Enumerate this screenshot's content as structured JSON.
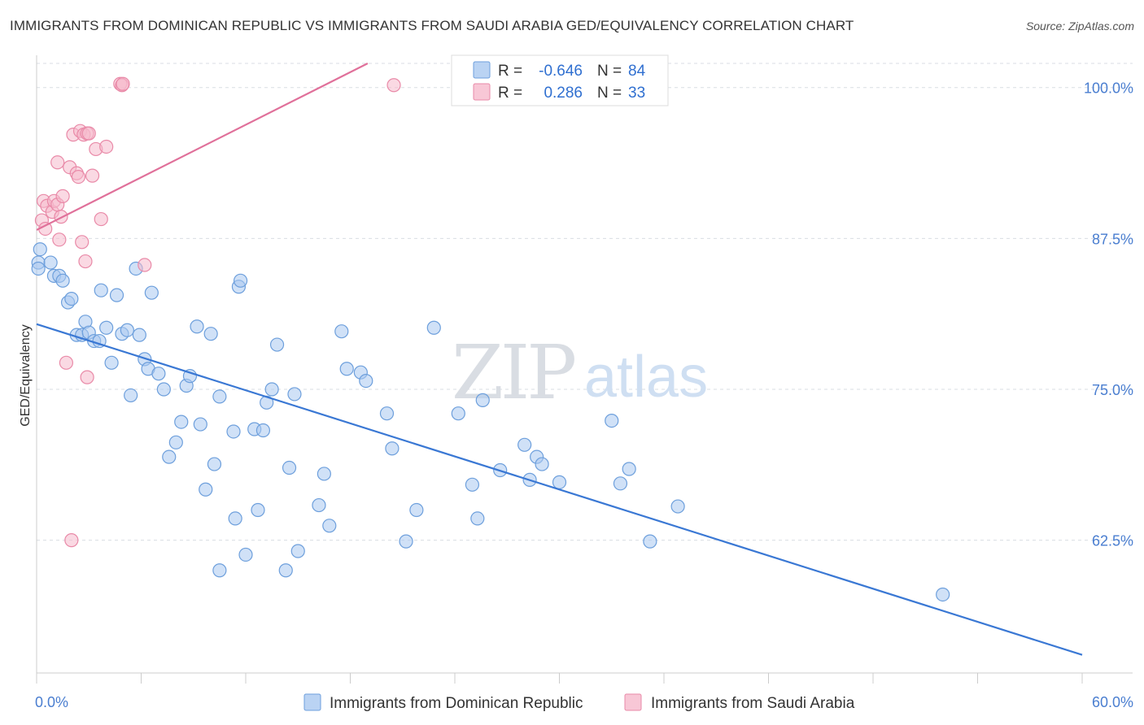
{
  "title": "IMMIGRANTS FROM DOMINICAN REPUBLIC VS IMMIGRANTS FROM SAUDI ARABIA GED/EQUIVALENCY CORRELATION CHART",
  "source": "Source: ZipAtlas.com",
  "watermark": {
    "part1": "ZIP",
    "part2": "atlas"
  },
  "colors": {
    "blue_fill": "#a9c8f0",
    "blue_stroke": "#6d9fdc",
    "blue_line": "#3a78d4",
    "pink_fill": "#f6b9cc",
    "pink_stroke": "#e98aa8",
    "pink_line": "#e0709a",
    "grid": "#d9dde3",
    "tick_text": "#4a7ed0"
  },
  "legend": {
    "rows": [
      {
        "r_label": "R =",
        "r_value": "-0.646",
        "n_label": "N =",
        "n_value": "84"
      },
      {
        "r_label": "R =",
        "r_value": "0.286",
        "n_label": "N =",
        "n_value": "33"
      }
    ]
  },
  "chart_data": {
    "type": "scatter",
    "ylabel": "GED/Equivalency",
    "xlim": [
      0,
      60
    ],
    "ylim": [
      51.5,
      102
    ],
    "x_tick_labels": [
      "0.0%",
      "60.0%"
    ],
    "y_ticks": [
      100,
      87.5,
      75,
      62.5
    ],
    "y_tick_labels": [
      "100.0%",
      "87.5%",
      "75.0%",
      "62.5%"
    ],
    "grid": "horizontal dashed",
    "legend_position": "top-center",
    "series": [
      {
        "name": "Immigrants from Dominican Republic",
        "color": "blue",
        "trend": {
          "x": [
            0,
            60
          ],
          "y": [
            80.4,
            53.0
          ]
        },
        "points": [
          [
            0.1,
            85.5
          ],
          [
            0.2,
            86.6
          ],
          [
            0.8,
            85.5
          ],
          [
            1.0,
            84.4
          ],
          [
            1.3,
            84.4
          ],
          [
            1.5,
            84.0
          ],
          [
            1.8,
            82.2
          ],
          [
            2.0,
            82.5
          ],
          [
            2.3,
            79.5
          ],
          [
            2.6,
            79.5
          ],
          [
            2.8,
            80.6
          ],
          [
            3.0,
            79.7
          ],
          [
            3.3,
            79.0
          ],
          [
            3.6,
            79.0
          ],
          [
            3.7,
            83.2
          ],
          [
            4.0,
            80.1
          ],
          [
            4.3,
            77.2
          ],
          [
            4.6,
            82.8
          ],
          [
            4.9,
            79.6
          ],
          [
            5.2,
            79.9
          ],
          [
            5.4,
            74.5
          ],
          [
            5.7,
            85.0
          ],
          [
            5.9,
            79.5
          ],
          [
            6.2,
            77.5
          ],
          [
            6.4,
            76.7
          ],
          [
            6.6,
            83.0
          ],
          [
            7.0,
            76.3
          ],
          [
            7.3,
            75.0
          ],
          [
            7.6,
            69.4
          ],
          [
            8.0,
            70.6
          ],
          [
            8.3,
            72.3
          ],
          [
            8.6,
            75.3
          ],
          [
            8.8,
            76.1
          ],
          [
            9.2,
            80.2
          ],
          [
            9.4,
            72.1
          ],
          [
            9.7,
            66.7
          ],
          [
            10.0,
            79.6
          ],
          [
            10.2,
            68.8
          ],
          [
            10.5,
            74.4
          ],
          [
            10.5,
            60.0
          ],
          [
            11.3,
            71.5
          ],
          [
            11.4,
            64.3
          ],
          [
            11.6,
            83.5
          ],
          [
            11.7,
            84.0
          ],
          [
            12.0,
            61.3
          ],
          [
            12.5,
            71.7
          ],
          [
            12.7,
            65.0
          ],
          [
            13.0,
            71.6
          ],
          [
            13.2,
            73.9
          ],
          [
            13.5,
            75.0
          ],
          [
            13.8,
            78.7
          ],
          [
            14.3,
            60.0
          ],
          [
            14.5,
            68.5
          ],
          [
            14.8,
            74.6
          ],
          [
            15.0,
            61.6
          ],
          [
            16.2,
            65.4
          ],
          [
            16.5,
            68.0
          ],
          [
            16.8,
            63.7
          ],
          [
            17.5,
            79.8
          ],
          [
            17.8,
            76.7
          ],
          [
            18.6,
            76.4
          ],
          [
            18.9,
            75.7
          ],
          [
            20.1,
            73.0
          ],
          [
            20.4,
            70.1
          ],
          [
            21.2,
            62.4
          ],
          [
            21.8,
            65.0
          ],
          [
            22.8,
            80.1
          ],
          [
            24.2,
            73.0
          ],
          [
            25.0,
            67.1
          ],
          [
            25.3,
            64.3
          ],
          [
            25.6,
            74.1
          ],
          [
            26.6,
            68.3
          ],
          [
            28.0,
            70.4
          ],
          [
            28.3,
            67.5
          ],
          [
            28.7,
            69.4
          ],
          [
            29.0,
            68.8
          ],
          [
            30.0,
            67.3
          ],
          [
            33.0,
            72.4
          ],
          [
            33.5,
            67.2
          ],
          [
            34.0,
            68.4
          ],
          [
            35.2,
            62.4
          ],
          [
            36.8,
            65.3
          ],
          [
            52.0,
            58.0
          ],
          [
            0.1,
            85.0
          ]
        ]
      },
      {
        "name": "Immigrants from Saudi Arabia",
        "color": "pink",
        "trend": {
          "x": [
            0,
            19
          ],
          "y": [
            88.2,
            102
          ]
        },
        "points": [
          [
            0.3,
            89.0
          ],
          [
            0.4,
            90.6
          ],
          [
            0.5,
            88.3
          ],
          [
            0.6,
            90.2
          ],
          [
            0.9,
            89.7
          ],
          [
            1.0,
            90.6
          ],
          [
            1.2,
            90.3
          ],
          [
            1.2,
            93.8
          ],
          [
            1.3,
            87.4
          ],
          [
            1.4,
            89.3
          ],
          [
            1.5,
            91.0
          ],
          [
            1.7,
            77.2
          ],
          [
            1.9,
            93.4
          ],
          [
            2.0,
            62.5
          ],
          [
            2.1,
            96.1
          ],
          [
            2.3,
            92.9
          ],
          [
            2.4,
            92.6
          ],
          [
            2.5,
            96.4
          ],
          [
            2.6,
            87.2
          ],
          [
            2.7,
            96.1
          ],
          [
            2.8,
            85.6
          ],
          [
            2.9,
            96.2
          ],
          [
            2.9,
            76.0
          ],
          [
            3.0,
            96.2
          ],
          [
            3.2,
            92.7
          ],
          [
            3.4,
            94.9
          ],
          [
            3.7,
            89.1
          ],
          [
            4.0,
            95.1
          ],
          [
            4.8,
            100.3
          ],
          [
            4.9,
            100.2
          ],
          [
            4.95,
            100.3
          ],
          [
            6.2,
            85.3
          ],
          [
            20.5,
            100.2
          ]
        ]
      }
    ]
  }
}
